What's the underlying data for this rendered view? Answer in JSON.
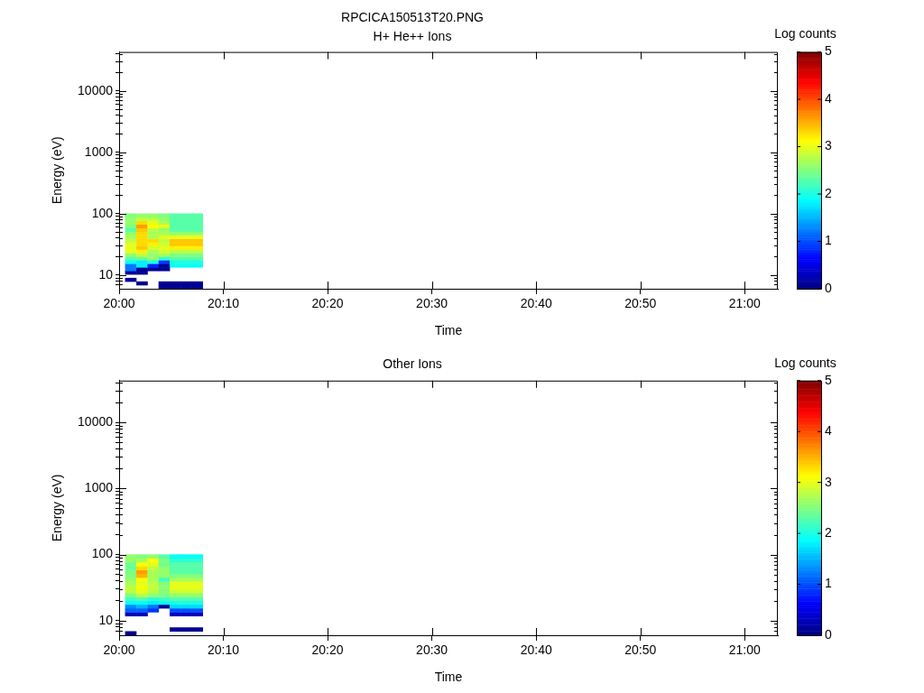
{
  "chart_data": [
    {
      "type": "scatter",
      "title": "RPCICA150513T20.PNG",
      "subtitle": "H+ He++ Ions",
      "xlabel": "Time",
      "ylabel": "Energy (eV)",
      "clabel": "Log counts",
      "log": "y",
      "marker": "square",
      "xlim": [
        20,
        21.053
      ],
      "xticks": [
        {
          "value": 20,
          "label": "20:00"
        },
        {
          "value": 20.1667,
          "label": "20:10"
        },
        {
          "value": 20.3333,
          "label": "20:20"
        },
        {
          "value": 20.5,
          "label": "20:30"
        },
        {
          "value": 20.6667,
          "label": "20:40"
        },
        {
          "value": 20.8333,
          "label": "20:50"
        },
        {
          "value": 21,
          "label": "21:00"
        }
      ],
      "ylim": [
        6,
        43000
      ],
      "yticks": [
        {
          "value": 7,
          "label": null
        },
        {
          "value": 8,
          "label": null
        },
        {
          "value": 9,
          "label": null
        },
        10,
        {
          "value": 20,
          "label": null
        },
        {
          "value": 30,
          "label": null
        },
        {
          "value": 40,
          "label": null
        },
        {
          "value": 50,
          "label": null
        },
        {
          "value": 60,
          "label": null
        },
        {
          "value": 70,
          "label": null
        },
        {
          "value": 80,
          "label": null
        },
        {
          "value": 90,
          "label": null
        },
        100,
        {
          "value": 200,
          "label": null
        },
        {
          "value": 300,
          "label": null
        },
        {
          "value": 400,
          "label": null
        },
        {
          "value": 500,
          "label": null
        },
        {
          "value": 600,
          "label": null
        },
        {
          "value": 700,
          "label": null
        },
        {
          "value": 800,
          "label": null
        },
        {
          "value": 900,
          "label": null
        },
        1000,
        {
          "value": 2000,
          "label": null
        },
        {
          "value": 3000,
          "label": null
        },
        {
          "value": 4000,
          "label": null
        },
        {
          "value": 5000,
          "label": null
        },
        {
          "value": 6000,
          "label": null
        },
        {
          "value": 7000,
          "label": null
        },
        {
          "value": 8000,
          "label": null
        },
        {
          "value": 9000,
          "label": null
        },
        10000,
        {
          "value": 20000,
          "label": null
        },
        {
          "value": 30000,
          "label": null
        },
        {
          "value": 40000,
          "label": null
        }
      ],
      "clim": [
        0,
        5
      ],
      "cticks": [
        0,
        1,
        2,
        3,
        4,
        5
      ],
      "x": [
        20.0722,
        20.09,
        20.1075,
        20.125,
        20.0367,
        20.0722,
        20.09,
        20.1075,
        20.125,
        20.0187,
        20.0187,
        20.0367,
        20.0187,
        20.0367,
        20.0545,
        20.0722,
        20.0187,
        20.0367,
        20.0545,
        20.0722,
        20.09,
        20.1075,
        20.125,
        20.0187,
        20.0367,
        20.0545,
        20.0722,
        20.09,
        20.1075,
        20.125,
        20.0187,
        20.0367,
        20.0545,
        20.0722,
        20.09,
        20.1075,
        20.125,
        20.0187,
        20.0367,
        20.0545,
        20.0722,
        20.09,
        20.1075,
        20.125,
        20.0187,
        20.0367,
        20.0545,
        20.0722,
        20.09,
        20.1075,
        20.125,
        20.0187,
        20.0367,
        20.0545,
        20.0722,
        20.09,
        20.1075,
        20.125,
        20.0187,
        20.0367,
        20.0545,
        20.0722,
        20.09,
        20.1075,
        20.125,
        20.0187,
        20.0367,
        20.0545,
        20.0722,
        20.09,
        20.1075,
        20.125,
        20.0187,
        20.0367,
        20.0545,
        20.0722,
        20.09,
        20.1075,
        20.125,
        20.0187,
        20.0367,
        20.0545,
        20.0722,
        20.09,
        20.1075,
        20.125,
        20.0187,
        20.0367,
        20.0545,
        20.0722,
        20.09,
        20.1075,
        20.125,
        20.0187,
        20.0367,
        20.0545,
        20.0722,
        20.09,
        20.1075,
        20.125,
        20.0187,
        20.0367,
        20.0545,
        20.0722,
        20.09,
        20.1075,
        20.125,
        20.0187,
        20.0367,
        20.0545,
        20.0722,
        20.09,
        20.1075,
        20.125,
        20.0187,
        20.0367,
        20.0545,
        20.0722,
        20.09,
        20.1075,
        20.125
      ],
      "values": [
        6.41,
        6.41,
        6.41,
        6.41,
        7.33,
        7.33,
        7.33,
        7.33,
        7.33,
        8.38,
        10.96,
        10.96,
        12.5,
        12.5,
        12.5,
        12.5,
        14.3,
        14.3,
        14.3,
        14.3,
        14.3,
        14.3,
        14.3,
        16.4,
        16.4,
        16.4,
        16.4,
        16.4,
        16.4,
        16.4,
        18.7,
        18.7,
        18.7,
        18.7,
        18.7,
        18.7,
        18.7,
        21.4,
        21.4,
        21.4,
        21.4,
        21.4,
        21.4,
        21.4,
        24.5,
        24.5,
        24.5,
        24.5,
        24.5,
        24.5,
        24.5,
        28.0,
        28.0,
        28.0,
        28.0,
        28.0,
        28.0,
        28.0,
        32.0,
        32.0,
        32.0,
        32.0,
        32.0,
        32.0,
        32.0,
        36.6,
        36.6,
        36.6,
        36.6,
        36.6,
        36.6,
        36.6,
        41.9,
        41.9,
        41.9,
        41.9,
        41.9,
        41.9,
        41.9,
        47.9,
        47.9,
        47.9,
        47.9,
        47.9,
        47.9,
        47.9,
        54.7,
        54.7,
        54.7,
        54.7,
        54.7,
        54.7,
        54.7,
        62.5,
        62.5,
        62.5,
        62.5,
        62.5,
        62.5,
        62.5,
        71.5,
        71.5,
        71.5,
        71.5,
        71.5,
        71.5,
        71.5,
        81.8,
        81.8,
        81.8,
        81.8,
        81.8,
        81.8,
        81.8,
        93.5,
        93.5,
        93.5,
        93.5,
        93.5,
        93.5,
        93.5
      ],
      "cvalues": [
        0.1,
        0.1,
        0.1,
        0.1,
        0.1,
        0.1,
        0.1,
        0.1,
        0.1,
        0.1,
        0.1,
        0.1,
        1.2,
        0.1,
        0.1,
        0.1,
        1.2,
        1.8,
        0.8,
        0.1,
        1.9,
        1.9,
        1.9,
        1.9,
        1.8,
        2.0,
        0.9,
        2.0,
        2.0,
        2.0,
        2.3,
        2.4,
        2.6,
        2.1,
        2.3,
        2.3,
        2.3,
        2.6,
        2.8,
        2.6,
        2.7,
        2.5,
        2.5,
        2.5,
        3.0,
        3.2,
        2.7,
        2.9,
        2.8,
        2.8,
        2.8,
        3.0,
        3.4,
        2.9,
        3.0,
        3.2,
        3.2,
        3.2,
        3.0,
        3.3,
        3.2,
        2.9,
        3.4,
        3.4,
        3.4,
        2.8,
        3.3,
        3.3,
        2.8,
        3.4,
        3.4,
        3.4,
        2.7,
        3.3,
        2.7,
        3.0,
        3.0,
        3.0,
        3.0,
        2.6,
        3.3,
        2.7,
        2.7,
        2.6,
        2.6,
        2.6,
        2.3,
        3.4,
        2.8,
        2.6,
        2.3,
        2.3,
        2.3,
        2.5,
        3.6,
        3.1,
        3.0,
        2.3,
        2.3,
        2.3,
        2.6,
        3.3,
        3.0,
        2.7,
        2.3,
        2.3,
        2.3,
        2.6,
        2.8,
        2.8,
        2.6,
        2.3,
        2.3,
        2.3,
        2.5,
        2.6,
        2.6,
        2.5,
        2.3,
        2.3,
        2.3
      ]
    },
    {
      "type": "scatter",
      "title": "Other Ions",
      "xlabel": "Time",
      "ylabel": "Energy (eV)",
      "clabel": "Log counts",
      "log": "y",
      "marker": "square",
      "xlim": [
        20,
        21.053
      ],
      "xticks": [
        {
          "value": 20,
          "label": "20:00"
        },
        {
          "value": 20.1667,
          "label": "20:10"
        },
        {
          "value": 20.3333,
          "label": "20:20"
        },
        {
          "value": 20.5,
          "label": "20:30"
        },
        {
          "value": 20.6667,
          "label": "20:40"
        },
        {
          "value": 20.8333,
          "label": "20:50"
        },
        {
          "value": 21,
          "label": "21:00"
        }
      ],
      "ylim": [
        6,
        43000
      ],
      "yticks": [
        {
          "value": 7,
          "label": null
        },
        {
          "value": 8,
          "label": null
        },
        {
          "value": 9,
          "label": null
        },
        10,
        {
          "value": 20,
          "label": null
        },
        {
          "value": 30,
          "label": null
        },
        {
          "value": 40,
          "label": null
        },
        {
          "value": 50,
          "label": null
        },
        {
          "value": 60,
          "label": null
        },
        {
          "value": 70,
          "label": null
        },
        {
          "value": 80,
          "label": null
        },
        {
          "value": 90,
          "label": null
        },
        100,
        {
          "value": 200,
          "label": null
        },
        {
          "value": 300,
          "label": null
        },
        {
          "value": 400,
          "label": null
        },
        {
          "value": 500,
          "label": null
        },
        {
          "value": 600,
          "label": null
        },
        {
          "value": 700,
          "label": null
        },
        {
          "value": 800,
          "label": null
        },
        {
          "value": 900,
          "label": null
        },
        1000,
        {
          "value": 2000,
          "label": null
        },
        {
          "value": 3000,
          "label": null
        },
        {
          "value": 4000,
          "label": null
        },
        {
          "value": 5000,
          "label": null
        },
        {
          "value": 6000,
          "label": null
        },
        {
          "value": 7000,
          "label": null
        },
        {
          "value": 8000,
          "label": null
        },
        {
          "value": 9000,
          "label": null
        },
        10000,
        {
          "value": 20000,
          "label": null
        },
        {
          "value": 30000,
          "label": null
        },
        {
          "value": 40000,
          "label": null
        }
      ],
      "clim": [
        0,
        5
      ],
      "cticks": [
        0,
        1,
        2,
        3,
        4,
        5
      ],
      "x": [
        20.0187,
        20.09,
        20.1075,
        20.125,
        20.0187,
        20.0367,
        20.09,
        20.1075,
        20.125,
        20.0187,
        20.0367,
        20.0545,
        20.09,
        20.1075,
        20.125,
        20.0187,
        20.0367,
        20.0545,
        20.0722,
        20.09,
        20.1075,
        20.125,
        20.0187,
        20.0367,
        20.0545,
        20.0722,
        20.09,
        20.1075,
        20.125,
        20.0187,
        20.0367,
        20.0545,
        20.0722,
        20.09,
        20.1075,
        20.125,
        20.0187,
        20.0367,
        20.0545,
        20.0722,
        20.09,
        20.1075,
        20.125,
        20.0187,
        20.0367,
        20.0545,
        20.0722,
        20.09,
        20.1075,
        20.125,
        20.0187,
        20.0367,
        20.0545,
        20.0722,
        20.09,
        20.1075,
        20.125,
        20.0187,
        20.0367,
        20.0545,
        20.0722,
        20.09,
        20.1075,
        20.125,
        20.0187,
        20.0367,
        20.0545,
        20.0722,
        20.09,
        20.1075,
        20.125,
        20.0187,
        20.0367,
        20.0545,
        20.0722,
        20.09,
        20.1075,
        20.125,
        20.0187,
        20.0367,
        20.0545,
        20.0722,
        20.09,
        20.1075,
        20.125,
        20.0187,
        20.0367,
        20.0545,
        20.0722,
        20.09,
        20.1075,
        20.125,
        20.0187,
        20.0367,
        20.0545,
        20.0722,
        20.09,
        20.1075,
        20.125,
        20.0187,
        20.0367,
        20.0545,
        20.0722,
        20.09,
        20.1075,
        20.125,
        20.0187,
        20.0367,
        20.0545,
        20.0722,
        20.09,
        20.1075,
        20.125
      ],
      "values": [
        6.41,
        7.33,
        7.33,
        7.33,
        12.5,
        12.5,
        12.5,
        12.5,
        12.5,
        14.3,
        14.3,
        14.3,
        14.3,
        14.3,
        14.3,
        16.4,
        16.4,
        16.4,
        16.4,
        16.4,
        16.4,
        16.4,
        18.7,
        18.7,
        18.7,
        18.7,
        18.7,
        18.7,
        18.7,
        21.4,
        21.4,
        21.4,
        21.4,
        21.4,
        21.4,
        21.4,
        24.5,
        24.5,
        24.5,
        24.5,
        24.5,
        24.5,
        24.5,
        28.0,
        28.0,
        28.0,
        28.0,
        28.0,
        28.0,
        28.0,
        32.0,
        32.0,
        32.0,
        32.0,
        32.0,
        32.0,
        32.0,
        36.6,
        36.6,
        36.6,
        36.6,
        36.6,
        36.6,
        36.6,
        41.9,
        41.9,
        41.9,
        41.9,
        41.9,
        41.9,
        41.9,
        47.9,
        47.9,
        47.9,
        47.9,
        47.9,
        47.9,
        47.9,
        54.7,
        54.7,
        54.7,
        54.7,
        54.7,
        54.7,
        54.7,
        62.5,
        62.5,
        62.5,
        62.5,
        62.5,
        62.5,
        62.5,
        71.5,
        71.5,
        71.5,
        71.5,
        71.5,
        71.5,
        71.5,
        81.8,
        81.8,
        81.8,
        81.8,
        81.8,
        81.8,
        81.8,
        93.5,
        93.5,
        93.5,
        93.5,
        93.5,
        93.5,
        93.5
      ],
      "cvalues": [
        0.1,
        0.1,
        0.1,
        0.1,
        0.3,
        0.3,
        0.3,
        0.3,
        0.3,
        1.1,
        1.1,
        0.9,
        1.0,
        1.0,
        1.0,
        1.3,
        1.5,
        1.2,
        0.1,
        1.7,
        1.7,
        1.7,
        1.9,
        1.9,
        1.8,
        1.9,
        2.0,
        2.0,
        2.0,
        2.2,
        2.3,
        2.1,
        2.2,
        2.3,
        2.3,
        2.3,
        2.5,
        2.8,
        2.6,
        2.5,
        2.6,
        2.6,
        2.6,
        2.8,
        3.0,
        2.8,
        2.5,
        2.9,
        2.9,
        2.9,
        2.8,
        3.1,
        2.8,
        2.6,
        3.0,
        3.0,
        3.0,
        2.7,
        3.0,
        2.8,
        2.5,
        3.0,
        3.0,
        3.0,
        2.6,
        3.1,
        2.7,
        2.2,
        2.7,
        2.7,
        2.7,
        2.5,
        3.5,
        2.7,
        2.6,
        2.5,
        2.5,
        2.5,
        2.5,
        3.6,
        2.7,
        2.6,
        2.3,
        2.3,
        2.3,
        2.4,
        3.3,
        2.8,
        2.6,
        2.3,
        2.3,
        2.3,
        2.4,
        3.1,
        3.0,
        2.4,
        2.3,
        2.3,
        2.3,
        2.6,
        2.7,
        3.1,
        2.5,
        2.1,
        2.1,
        2.1,
        2.6,
        2.5,
        2.6,
        2.3,
        1.9,
        1.9,
        1.9
      ]
    }
  ]
}
